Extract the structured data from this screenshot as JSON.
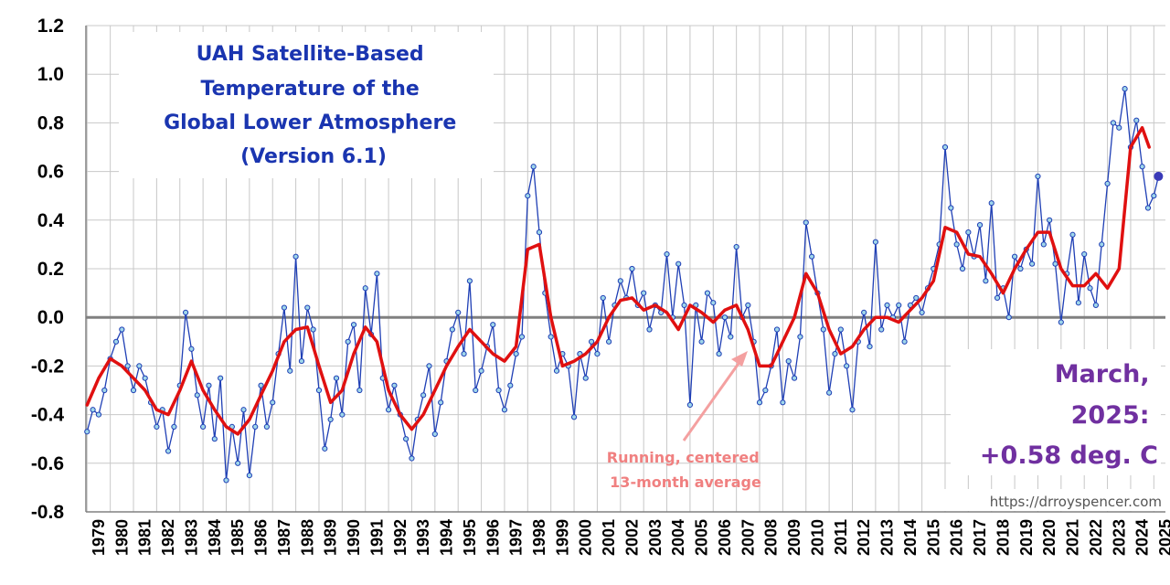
{
  "chart_data": {
    "type": "line",
    "title_lines": [
      "UAH Satellite-Based",
      "Temperature of the",
      "Global Lower Atmosphere",
      "(Version 6.1)"
    ],
    "annotation_lines": [
      "Running, centered",
      "13-month average"
    ],
    "latest_lines": [
      "March,",
      "2025:",
      "+0.58 deg. C"
    ],
    "source_url": "https://drroyspencer.com",
    "ylim": [
      -0.8,
      1.2
    ],
    "y_ticks": [
      "1.2",
      "1.0",
      "0.8",
      "0.6",
      "0.4",
      "0.2",
      "0.0",
      "-0.2",
      "-0.4",
      "-0.6",
      "-0.8"
    ],
    "year_labels": [
      "1979",
      "1980",
      "1981",
      "1982",
      "1983",
      "1984",
      "1985",
      "1986",
      "1987",
      "1988",
      "1989",
      "1990",
      "1991",
      "1992",
      "1993",
      "1994",
      "1995",
      "1996",
      "1997",
      "1998",
      "1999",
      "2000",
      "2001",
      "2002",
      "2003",
      "2004",
      "2005",
      "2006",
      "2007",
      "2008",
      "2009",
      "2010",
      "2011",
      "2012",
      "2013",
      "2014",
      "2015",
      "2016",
      "2017",
      "2018",
      "2019",
      "2020",
      "2021",
      "2022",
      "2023",
      "2024",
      "2025"
    ],
    "grid": true,
    "colors": {
      "monthly": "#1f3fb5",
      "marker_fill": "#9fd6ea",
      "running_mean": "#e01010",
      "latest": "#3a3ab8",
      "arrow": "#f4a0a0",
      "zero_line": "#808080"
    },
    "series": [
      {
        "name": "Running, centered 13-month average",
        "x": [
          1979.0,
          1979.5,
          1980.0,
          1980.5,
          1981.0,
          1981.5,
          1982.0,
          1982.5,
          1983.0,
          1983.5,
          1984.0,
          1984.5,
          1985.0,
          1985.5,
          1986.0,
          1986.5,
          1987.0,
          1987.5,
          1988.0,
          1988.5,
          1989.0,
          1989.5,
          1990.0,
          1990.5,
          1991.0,
          1991.5,
          1992.0,
          1992.5,
          1993.0,
          1993.5,
          1994.0,
          1994.5,
          1995.0,
          1995.5,
          1996.0,
          1996.5,
          1997.0,
          1997.5,
          1998.0,
          1998.5,
          1999.0,
          1999.5,
          2000.0,
          2000.5,
          2001.0,
          2001.5,
          2002.0,
          2002.5,
          2003.0,
          2003.5,
          2004.0,
          2004.5,
          2005.0,
          2005.5,
          2006.0,
          2006.5,
          2007.0,
          2007.5,
          2008.0,
          2008.5,
          2009.0,
          2009.5,
          2010.0,
          2010.5,
          2011.0,
          2011.5,
          2012.0,
          2012.5,
          2013.0,
          2013.5,
          2014.0,
          2014.5,
          2015.0,
          2015.5,
          2016.0,
          2016.5,
          2017.0,
          2017.5,
          2018.0,
          2018.5,
          2019.0,
          2019.5,
          2020.0,
          2020.5,
          2021.0,
          2021.5,
          2022.0,
          2022.5,
          2023.0,
          2023.5,
          2024.0,
          2024.5,
          2024.8
        ],
        "y": [
          -0.36,
          -0.25,
          -0.17,
          -0.2,
          -0.25,
          -0.3,
          -0.38,
          -0.4,
          -0.3,
          -0.18,
          -0.3,
          -0.38,
          -0.45,
          -0.48,
          -0.42,
          -0.32,
          -0.22,
          -0.1,
          -0.05,
          -0.04,
          -0.2,
          -0.35,
          -0.3,
          -0.15,
          -0.04,
          -0.1,
          -0.3,
          -0.4,
          -0.46,
          -0.4,
          -0.3,
          -0.2,
          -0.12,
          -0.05,
          -0.1,
          -0.15,
          -0.18,
          -0.12,
          0.28,
          0.3,
          0.0,
          -0.2,
          -0.18,
          -0.15,
          -0.1,
          0.0,
          0.07,
          0.08,
          0.03,
          0.05,
          0.02,
          -0.05,
          0.05,
          0.02,
          -0.02,
          0.03,
          0.05,
          -0.05,
          -0.2,
          -0.2,
          -0.1,
          0.0,
          0.18,
          0.1,
          -0.05,
          -0.15,
          -0.12,
          -0.05,
          0.0,
          0.0,
          -0.02,
          0.03,
          0.08,
          0.15,
          0.37,
          0.35,
          0.26,
          0.25,
          0.18,
          0.1,
          0.2,
          0.28,
          0.35,
          0.35,
          0.2,
          0.13,
          0.13,
          0.18,
          0.12,
          0.2,
          0.7,
          0.78,
          0.7
        ]
      },
      {
        "name": "monthly",
        "x": [
          1979.0,
          1979.25,
          1979.5,
          1979.75,
          1980.0,
          1980.25,
          1980.5,
          1980.75,
          1981.0,
          1981.25,
          1981.5,
          1981.75,
          1982.0,
          1982.25,
          1982.5,
          1982.75,
          1983.0,
          1983.25,
          1983.5,
          1983.75,
          1984.0,
          1984.25,
          1984.5,
          1984.75,
          1985.0,
          1985.25,
          1985.5,
          1985.75,
          1986.0,
          1986.25,
          1986.5,
          1986.75,
          1987.0,
          1987.25,
          1987.5,
          1987.75,
          1988.0,
          1988.25,
          1988.5,
          1988.75,
          1989.0,
          1989.25,
          1989.5,
          1989.75,
          1990.0,
          1990.25,
          1990.5,
          1990.75,
          1991.0,
          1991.25,
          1991.5,
          1991.75,
          1992.0,
          1992.25,
          1992.5,
          1992.75,
          1993.0,
          1993.25,
          1993.5,
          1993.75,
          1994.0,
          1994.25,
          1994.5,
          1994.75,
          1995.0,
          1995.25,
          1995.5,
          1995.75,
          1996.0,
          1996.25,
          1996.5,
          1996.75,
          1997.0,
          1997.25,
          1997.5,
          1997.75,
          1998.0,
          1998.25,
          1998.5,
          1998.75,
          1999.0,
          1999.25,
          1999.5,
          1999.75,
          2000.0,
          2000.25,
          2000.5,
          2000.75,
          2001.0,
          2001.25,
          2001.5,
          2001.75,
          2002.0,
          2002.25,
          2002.5,
          2002.75,
          2003.0,
          2003.25,
          2003.5,
          2003.75,
          2004.0,
          2004.25,
          2004.5,
          2004.75,
          2005.0,
          2005.25,
          2005.5,
          2005.75,
          2006.0,
          2006.25,
          2006.5,
          2006.75,
          2007.0,
          2007.25,
          2007.5,
          2007.75,
          2008.0,
          2008.25,
          2008.5,
          2008.75,
          2009.0,
          2009.25,
          2009.5,
          2009.75,
          2010.0,
          2010.25,
          2010.5,
          2010.75,
          2011.0,
          2011.25,
          2011.5,
          2011.75,
          2012.0,
          2012.25,
          2012.5,
          2012.75,
          2013.0,
          2013.25,
          2013.5,
          2013.75,
          2014.0,
          2014.25,
          2014.5,
          2014.75,
          2015.0,
          2015.25,
          2015.5,
          2015.75,
          2016.0,
          2016.25,
          2016.5,
          2016.75,
          2017.0,
          2017.25,
          2017.5,
          2017.75,
          2018.0,
          2018.25,
          2018.5,
          2018.75,
          2019.0,
          2019.25,
          2019.5,
          2019.75,
          2020.0,
          2020.25,
          2020.5,
          2020.75,
          2021.0,
          2021.25,
          2021.5,
          2021.75,
          2022.0,
          2022.25,
          2022.5,
          2022.75,
          2023.0,
          2023.25,
          2023.5,
          2023.75,
          2024.0,
          2024.25,
          2024.5,
          2024.75,
          2025.0,
          2025.2
        ],
        "y": [
          -0.47,
          -0.38,
          -0.4,
          -0.3,
          -0.17,
          -0.1,
          -0.05,
          -0.2,
          -0.3,
          -0.2,
          -0.25,
          -0.35,
          -0.45,
          -0.38,
          -0.55,
          -0.45,
          -0.28,
          0.02,
          -0.13,
          -0.32,
          -0.45,
          -0.28,
          -0.5,
          -0.25,
          -0.67,
          -0.45,
          -0.6,
          -0.38,
          -0.65,
          -0.45,
          -0.28,
          -0.45,
          -0.35,
          -0.15,
          0.04,
          -0.22,
          0.25,
          -0.18,
          0.04,
          -0.05,
          -0.3,
          -0.54,
          -0.42,
          -0.25,
          -0.4,
          -0.1,
          -0.03,
          -0.3,
          0.12,
          -0.07,
          0.18,
          -0.25,
          -0.38,
          -0.28,
          -0.4,
          -0.5,
          -0.58,
          -0.42,
          -0.32,
          -0.2,
          -0.48,
          -0.35,
          -0.18,
          -0.05,
          0.02,
          -0.15,
          0.15,
          -0.3,
          -0.22,
          -0.12,
          -0.03,
          -0.3,
          -0.38,
          -0.28,
          -0.15,
          -0.08,
          0.5,
          0.62,
          0.35,
          0.1,
          -0.08,
          -0.22,
          -0.15,
          -0.2,
          -0.41,
          -0.15,
          -0.25,
          -0.1,
          -0.15,
          0.08,
          -0.1,
          0.05,
          0.15,
          0.08,
          0.2,
          0.05,
          0.1,
          -0.05,
          0.05,
          0.02,
          0.26,
          0.0,
          0.22,
          0.05,
          -0.36,
          0.05,
          -0.1,
          0.1,
          0.06,
          -0.15,
          0.0,
          -0.08,
          0.29,
          0.0,
          0.05,
          -0.1,
          -0.35,
          -0.3,
          -0.2,
          -0.05,
          -0.35,
          -0.18,
          -0.25,
          -0.08,
          0.39,
          0.25,
          0.1,
          -0.05,
          -0.31,
          -0.15,
          -0.05,
          -0.2,
          -0.38,
          -0.1,
          0.02,
          -0.12,
          0.31,
          -0.05,
          0.05,
          0.0,
          0.05,
          -0.1,
          0.05,
          0.08,
          0.02,
          0.12,
          0.2,
          0.3,
          0.7,
          0.45,
          0.3,
          0.2,
          0.35,
          0.25,
          0.38,
          0.15,
          0.47,
          0.08,
          0.12,
          0.0,
          0.25,
          0.2,
          0.28,
          0.22,
          0.58,
          0.3,
          0.4,
          0.22,
          -0.02,
          0.18,
          0.34,
          0.06,
          0.26,
          0.12,
          0.05,
          0.3,
          0.55,
          0.8,
          0.78,
          0.94,
          0.7,
          0.81,
          0.62,
          0.45,
          0.5,
          0.58
        ]
      }
    ],
    "latest_point": {
      "x": 2025.2,
      "y": 0.58
    }
  }
}
